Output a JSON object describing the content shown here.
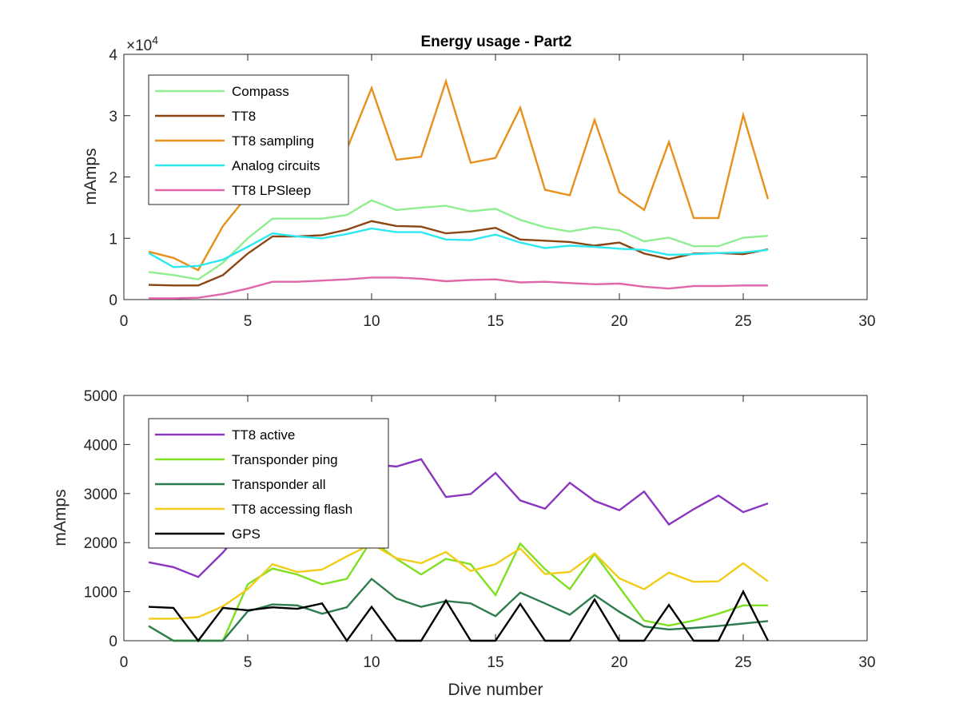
{
  "chart_data": [
    {
      "type": "line",
      "title": "Energy usage - Part2",
      "xlabel": "",
      "ylabel": "mAmps",
      "xlim": [
        0,
        30
      ],
      "ylim": [
        0,
        40000
      ],
      "xticks": [
        0,
        5,
        10,
        15,
        20,
        25,
        30
      ],
      "yticks": [
        0,
        10000,
        20000,
        30000,
        40000
      ],
      "ytick_labels": [
        "0",
        "1",
        "2",
        "3",
        "4"
      ],
      "exponent_label": "×10",
      "exponent_power": "4",
      "grid": false,
      "legend_position": "top-left",
      "x": [
        1,
        2,
        3,
        4,
        5,
        6,
        7,
        8,
        9,
        10,
        11,
        12,
        13,
        14,
        15,
        16,
        17,
        18,
        19,
        20,
        21,
        22,
        23,
        24,
        25,
        26
      ],
      "series": [
        {
          "name": "Compass",
          "color": "#90ee90",
          "values": [
            4500,
            4000,
            3300,
            6000,
            10000,
            13200,
            13200,
            13200,
            13800,
            16200,
            14600,
            15000,
            15300,
            14400,
            14800,
            13000,
            11800,
            11100,
            11800,
            11300,
            9500,
            10100,
            8700,
            8700,
            10100,
            10400
          ]
        },
        {
          "name": "TT8",
          "color": "#8b4513",
          "values": [
            2400,
            2300,
            2300,
            4000,
            7500,
            10300,
            10300,
            10500,
            11400,
            12800,
            12000,
            11900,
            10800,
            11100,
            11700,
            9800,
            9600,
            9400,
            8800,
            9300,
            7500,
            6600,
            7500,
            7600,
            7400,
            8200
          ]
        },
        {
          "name": "TT8 sampling",
          "color": "#e8901c",
          "values": [
            7800,
            6800,
            4800,
            12000,
            17000,
            20000,
            21500,
            22500,
            24500,
            34500,
            22800,
            23300,
            35600,
            22300,
            23100,
            31300,
            17900,
            17000,
            29300,
            17500,
            14600,
            25700,
            13300,
            13300,
            30100,
            16400
          ]
        },
        {
          "name": "Analog circuits",
          "color": "#2ee8f0",
          "values": [
            7600,
            5300,
            5500,
            6500,
            8600,
            10800,
            10300,
            10000,
            10700,
            11600,
            11000,
            11000,
            9800,
            9700,
            10600,
            9300,
            8400,
            8800,
            8600,
            8300,
            8100,
            7300,
            7400,
            7600,
            7700,
            8100
          ]
        },
        {
          "name": "TT8 LPSleep",
          "color": "#e066a8",
          "values": [
            200,
            200,
            300,
            900,
            1800,
            2900,
            2900,
            3100,
            3300,
            3600,
            3600,
            3400,
            3000,
            3200,
            3300,
            2800,
            2900,
            2700,
            2500,
            2600,
            2100,
            1800,
            2200,
            2200,
            2300,
            2300
          ]
        }
      ]
    },
    {
      "type": "line",
      "title": "",
      "xlabel": "Dive number",
      "ylabel": "mAmps",
      "xlim": [
        0,
        30
      ],
      "ylim": [
        0,
        5000
      ],
      "xticks": [
        0,
        5,
        10,
        15,
        20,
        25,
        30
      ],
      "yticks": [
        0,
        1000,
        2000,
        3000,
        4000,
        5000
      ],
      "ytick_labels": [
        "0",
        "1000",
        "2000",
        "3000",
        "4000",
        "5000"
      ],
      "grid": false,
      "legend_position": "top-left",
      "x": [
        1,
        2,
        3,
        4,
        5,
        6,
        7,
        8,
        9,
        10,
        11,
        12,
        13,
        14,
        15,
        16,
        17,
        18,
        19,
        20,
        21,
        22,
        23,
        24,
        25,
        26
      ],
      "series": [
        {
          "name": "TT8 active",
          "color": "#8b35c0",
          "values": [
            1600,
            1500,
            1300,
            1800,
            2400,
            3000,
            3200,
            3300,
            3400,
            3600,
            3550,
            3700,
            2930,
            2990,
            3420,
            2860,
            2690,
            3220,
            2850,
            2660,
            3040,
            2370,
            2680,
            2960,
            2620,
            2800
          ]
        },
        {
          "name": "Transponder ping",
          "color": "#7ee020",
          "values": [
            300,
            0,
            0,
            0,
            1150,
            1470,
            1350,
            1150,
            1260,
            2050,
            1670,
            1350,
            1670,
            1560,
            930,
            1980,
            1460,
            1050,
            1770,
            1090,
            410,
            310,
            410,
            550,
            720,
            720
          ]
        },
        {
          "name": "Transponder all",
          "color": "#2e7d4f",
          "values": [
            300,
            0,
            0,
            0,
            600,
            740,
            720,
            550,
            680,
            1260,
            860,
            690,
            810,
            760,
            500,
            980,
            760,
            530,
            930,
            590,
            290,
            230,
            260,
            300,
            350,
            400
          ]
        },
        {
          "name": "TT8 accessing flash",
          "color": "#f2cc1a",
          "values": [
            450,
            450,
            480,
            700,
            1050,
            1560,
            1400,
            1450,
            1720,
            1970,
            1680,
            1580,
            1810,
            1420,
            1560,
            1880,
            1360,
            1400,
            1780,
            1270,
            1050,
            1390,
            1200,
            1210,
            1580,
            1210
          ]
        },
        {
          "name": "GPS",
          "color": "#000000",
          "values": [
            690,
            670,
            0,
            670,
            620,
            680,
            650,
            760,
            0,
            690,
            0,
            0,
            820,
            0,
            0,
            750,
            0,
            0,
            840,
            0,
            0,
            730,
            0,
            0,
            1000,
            0
          ]
        }
      ]
    }
  ]
}
